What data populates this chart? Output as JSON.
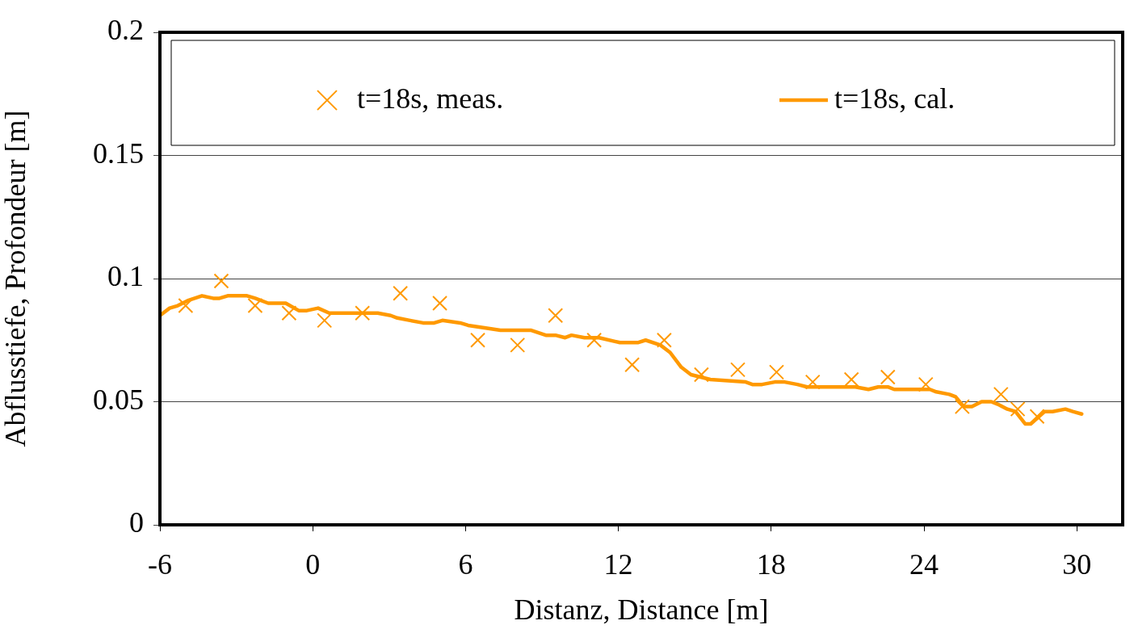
{
  "chart_data": {
    "type": "scatter",
    "xlabel": "Distanz, Distance [m]",
    "ylabel": "Abflusstiefe, Profondeur [m]",
    "xlim": [
      -6,
      31.8
    ],
    "xticks": [
      -6,
      0,
      6,
      12,
      18,
      24,
      30
    ],
    "ylim": [
      0,
      0.2
    ],
    "yticks": [
      0,
      0.05,
      0.1,
      0.15,
      0.2
    ],
    "grid": "y",
    "legend": "top",
    "series": [
      {
        "name": "t=18s, meas.",
        "marker": "cross",
        "color": "#ff9900",
        "x": [
          -4.99,
          -3.59,
          -2.26,
          -0.93,
          0.46,
          1.95,
          3.44,
          4.99,
          6.48,
          8.04,
          9.53,
          11.05,
          12.54,
          13.8,
          15.26,
          16.69,
          18.21,
          19.63,
          21.15,
          22.58,
          24.07,
          25.5,
          27.02,
          27.68,
          28.44
        ],
        "values": [
          0.089,
          0.099,
          0.089,
          0.086,
          0.083,
          0.086,
          0.094,
          0.09,
          0.075,
          0.073,
          0.085,
          0.075,
          0.065,
          0.075,
          0.061,
          0.063,
          0.062,
          0.058,
          0.059,
          0.06,
          0.057,
          0.048,
          0.053,
          0.047,
          0.044
        ]
      },
      {
        "name": "t=18s, cal.",
        "type": "line",
        "marker": "none",
        "color": "#ff9900",
        "x": [
          -6,
          -5.62,
          -5.3,
          -4.92,
          -4.35,
          -3.91,
          -3.66,
          -3.34,
          -3.02,
          -2.58,
          -2.26,
          -1.75,
          -1.06,
          -0.55,
          -0.23,
          0.21,
          0.65,
          2.55,
          3.06,
          3.32,
          3.82,
          4.33,
          4.77,
          5.09,
          5.79,
          6.1,
          6.74,
          7.37,
          8.58,
          9.15,
          9.53,
          9.91,
          10.16,
          10.67,
          11.24,
          12.06,
          12.76,
          13.07,
          13.65,
          14.03,
          14.47,
          14.85,
          15.61,
          17,
          17.26,
          17.64,
          18.14,
          18.53,
          19.03,
          19.41,
          21.31,
          21.82,
          22.2,
          22.58,
          22.83,
          24.23,
          24.48,
          24.99,
          25.24,
          25.56,
          25.88,
          26.26,
          26.64,
          26.89,
          27.27,
          27.59,
          27.97,
          28.19,
          28.73,
          29.05,
          29.55,
          29.84,
          30.19
        ],
        "values": [
          0.085,
          0.088,
          0.089,
          0.091,
          0.093,
          0.092,
          0.092,
          0.093,
          0.093,
          0.093,
          0.092,
          0.09,
          0.09,
          0.087,
          0.087,
          0.088,
          0.086,
          0.086,
          0.085,
          0.084,
          0.083,
          0.082,
          0.082,
          0.083,
          0.082,
          0.081,
          0.08,
          0.079,
          0.079,
          0.077,
          0.077,
          0.076,
          0.077,
          0.076,
          0.076,
          0.074,
          0.074,
          0.075,
          0.073,
          0.07,
          0.064,
          0.061,
          0.059,
          0.058,
          0.057,
          0.057,
          0.058,
          0.058,
          0.057,
          0.056,
          0.056,
          0.055,
          0.056,
          0.056,
          0.055,
          0.055,
          0.054,
          0.053,
          0.052,
          0.048,
          0.048,
          0.05,
          0.05,
          0.049,
          0.047,
          0.046,
          0.041,
          0.041,
          0.046,
          0.046,
          0.047,
          0.046,
          0.045
        ]
      }
    ]
  }
}
